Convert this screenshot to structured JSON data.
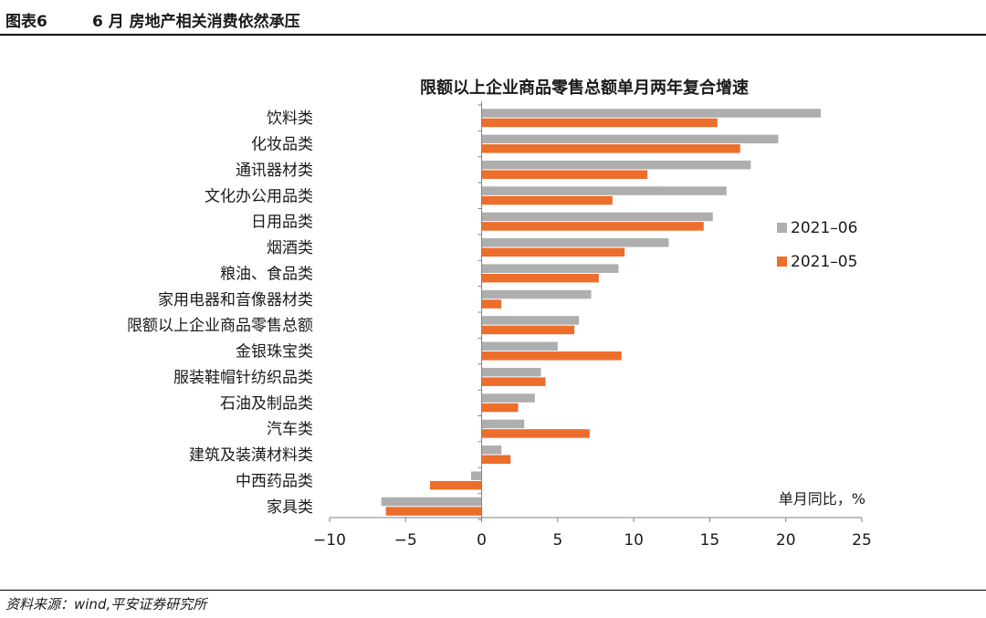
{
  "header": {
    "figure_no": "图表6",
    "title": "6 月 房地产相关消费依然承压"
  },
  "footer": {
    "source": "资料来源：wind,平安证券研究所"
  },
  "colors": {
    "series_2021_06": "#AEAEAE",
    "series_2021_05": "#ED6D2B"
  },
  "chart_data": {
    "type": "bar",
    "orientation": "horizontal",
    "title": "限额以上企业商品零售总额单月两年复合增速",
    "unit_label": "单月同比，%",
    "categories": [
      "饮料类",
      "化妆品类",
      "通讯器材类",
      "文化办公用品类",
      "日用品类",
      "烟酒类",
      "粮油、食品类",
      "家用电器和音像器材类",
      "限额以上企业商品零售总额",
      "金银珠宝类",
      "服装鞋帽针纺织品类",
      "石油及制品类",
      "汽车类",
      "建筑及装潢材料类",
      "中西药品类",
      "家具类"
    ],
    "series": [
      {
        "name": "2021–06",
        "values": [
          22.3,
          19.5,
          17.7,
          16.1,
          15.2,
          12.3,
          9.0,
          7.2,
          6.4,
          5.0,
          3.9,
          3.5,
          2.8,
          1.3,
          -0.7,
          -6.6
        ]
      },
      {
        "name": "2021–05",
        "values": [
          15.5,
          17.0,
          10.9,
          8.6,
          14.6,
          9.4,
          7.7,
          1.3,
          6.1,
          9.2,
          4.2,
          2.4,
          7.1,
          1.9,
          -3.4,
          -6.3
        ]
      }
    ],
    "xlim": [
      -10,
      25
    ],
    "xticks": [
      -10,
      -5,
      0,
      5,
      10,
      15,
      20,
      25
    ],
    "xtick_labels": [
      "−10",
      "−5",
      "0",
      "5",
      "10",
      "15",
      "20",
      "25"
    ],
    "grid": false,
    "legend_position": "right"
  }
}
